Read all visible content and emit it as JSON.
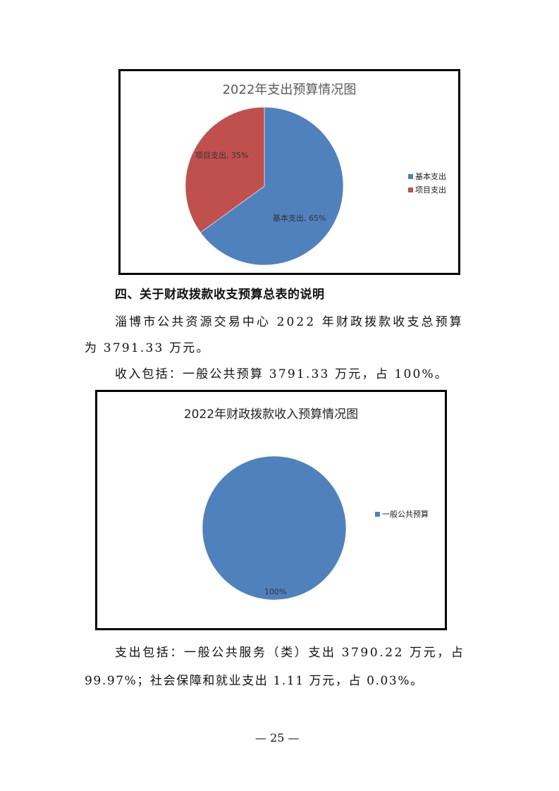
{
  "chart_data": [
    {
      "type": "pie",
      "title": "2022年支出预算情况图",
      "categories": [
        "基本支出",
        "项目支出"
      ],
      "values": [
        65,
        35
      ],
      "data_labels": [
        "基本支出, 65%",
        "项目支出, 35%"
      ],
      "colors": [
        "#4F81BD",
        "#C0504D"
      ],
      "legend": "right"
    },
    {
      "type": "pie",
      "title": "2022年财政拨款收入预算情况图",
      "categories": [
        "一般公共预算"
      ],
      "values": [
        100
      ],
      "data_labels": [
        "100%"
      ],
      "colors": [
        "#4F81BD"
      ],
      "legend": "right"
    }
  ],
  "heading": "四、关于财政拨款收支预算总表的说明",
  "paragraphs": {
    "p1_line1": "淄博市公共资源交易中心 2022 年财政拨款收支总预算",
    "p1_line2": "为 3791.33 万元。",
    "p2": "收入包括：一般公共预算 3791.33 万元，占 100%。",
    "p3_line1": "支出包括：一般公共服务（类）支出 3790.22 万元，占",
    "p3_line2": "99.97%；社会保障和就业支出 1.11 万元，占 0.03%。"
  },
  "page_number": "— 25 —"
}
